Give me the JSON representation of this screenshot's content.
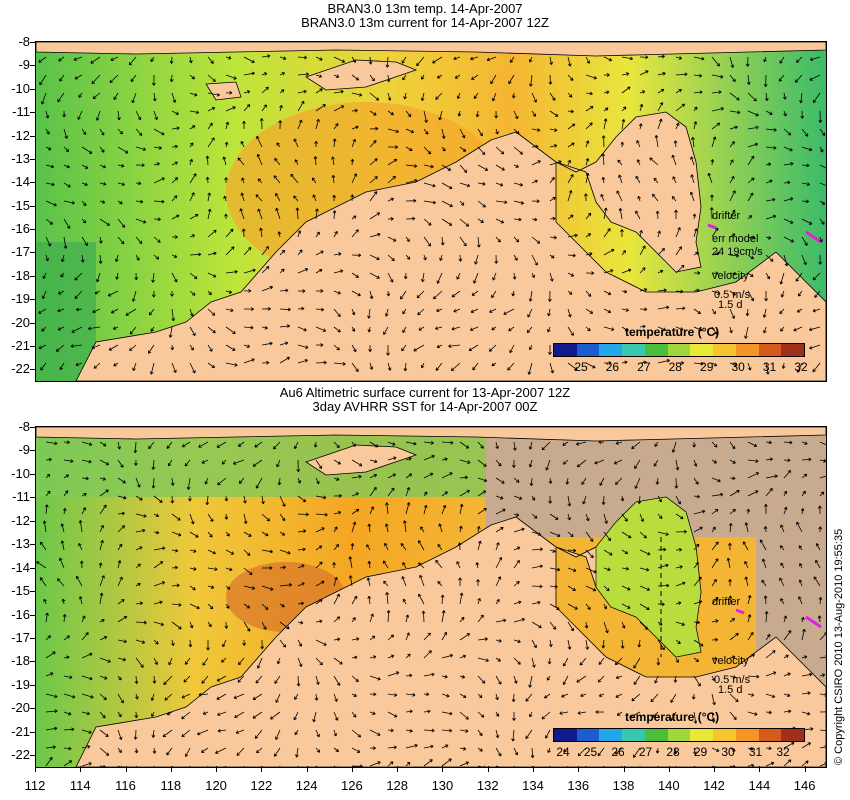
{
  "top_panel": {
    "title_line1": "BRAN3.0 13m temp. 14-Apr-2007",
    "title_line2": "BRAN3.0 13m current for 14-Apr-2007 12Z",
    "legend_title": "temperature (°C)",
    "colorbar_labels": [
      "25",
      "26",
      "27",
      "28",
      "29",
      "30",
      "31",
      "32"
    ],
    "drifter_label": "drifter",
    "err_model_label": "err model",
    "err_model_value": "24 19cm/s",
    "velocity_label": "velocity",
    "velocity_scale": "0.5 m/s",
    "velocity_time": "1.5 d"
  },
  "bottom_panel": {
    "title_line1": "Au6 Altimetric surface current for 13-Apr-2007 12Z",
    "title_line2": "3day AVHRR SST for 14-Apr-2007 00Z",
    "legend_title": "temperature (°C)",
    "colorbar_labels": [
      "24",
      "25",
      "26",
      "27",
      "28",
      "29",
      "30",
      "31",
      "32"
    ],
    "drifter_label": "drifter",
    "velocity_label": "velocity",
    "velocity_scale": "0.5 m/s",
    "velocity_time": "1.5 d"
  },
  "lat_labels": [
    "-8",
    "-9",
    "-10",
    "-11",
    "-12",
    "-13",
    "-14",
    "-15",
    "-16",
    "-17",
    "-18",
    "-19",
    "-20",
    "-21",
    "-22"
  ],
  "lon_labels": [
    "112",
    "114",
    "116",
    "118",
    "120",
    "122",
    "124",
    "126",
    "128",
    "130",
    "132",
    "134",
    "136",
    "138",
    "140",
    "142",
    "144",
    "146"
  ],
  "copyright": "© Copyright CSIRO 2010   13-Aug-2010 19:55:35",
  "colors": {
    "land": "#f9c99b",
    "ocean_warm": "#f5a623",
    "ocean_mid": "#e6e24a",
    "ocean_cool": "#6cc84a",
    "no_data": "#c8ab8f",
    "drifter": "#e020e0",
    "contour": "#5ad0e0"
  }
}
